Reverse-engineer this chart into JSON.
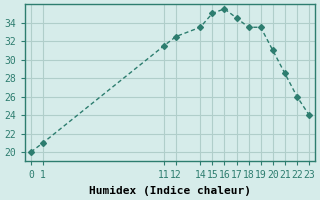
{
  "x": [
    0,
    1,
    11,
    12,
    14,
    15,
    16,
    17,
    18,
    19,
    20,
    21,
    22,
    23
  ],
  "y": [
    20,
    21,
    31.5,
    32.5,
    33.5,
    35,
    35.5,
    34.5,
    33.5,
    33.5,
    31,
    28.5,
    26,
    24
  ],
  "line_color": "#2d7d6f",
  "marker": "D",
  "marker_size": 3,
  "bg_color": "#d6ecea",
  "grid_color": "#b0ceca",
  "xlabel": "Humidex (Indice chaleur)",
  "ylabel": "",
  "xlim": [
    -0.5,
    23.5
  ],
  "ylim": [
    19,
    36
  ],
  "xticks": [
    0,
    1,
    11,
    12,
    14,
    15,
    16,
    17,
    18,
    19,
    20,
    21,
    22,
    23
  ],
  "yticks": [
    20,
    22,
    24,
    26,
    28,
    30,
    32,
    34
  ],
  "tick_label_fontsize": 7,
  "xlabel_fontsize": 8,
  "title_fontsize": 7.5
}
